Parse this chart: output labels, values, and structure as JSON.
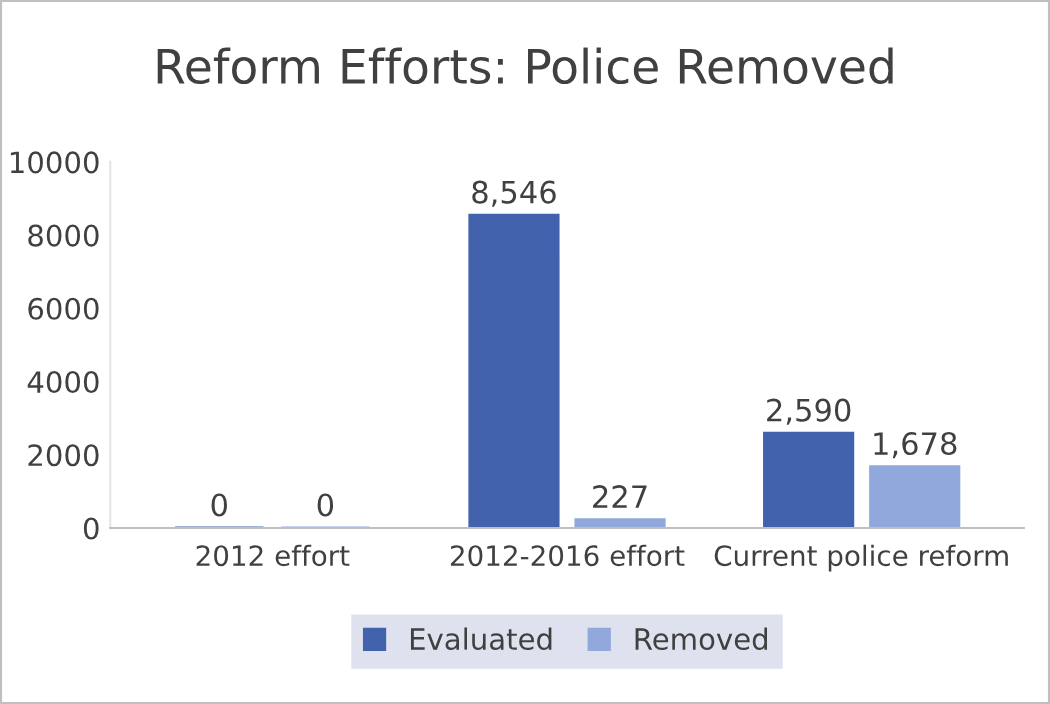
{
  "chart_data": {
    "type": "bar",
    "title": "Reform Efforts: Police Removed",
    "categories": [
      "2012 effort",
      "2012-2016 effort",
      "Current police reform"
    ],
    "series": [
      {
        "name": "Evaluated",
        "color": "#4262ae",
        "values": [
          0,
          8546,
          2590
        ],
        "value_labels": [
          "0",
          "8,546",
          "2,590"
        ]
      },
      {
        "name": "Removed",
        "color": "#90a8dc",
        "values": [
          0,
          227,
          1678
        ],
        "value_labels": [
          "0",
          "227",
          "1,678"
        ]
      }
    ],
    "ylim": [
      0,
      10000
    ],
    "yticks": [
      0,
      2000,
      4000,
      6000,
      8000,
      10000
    ],
    "grid": false,
    "legend": "bottom"
  }
}
